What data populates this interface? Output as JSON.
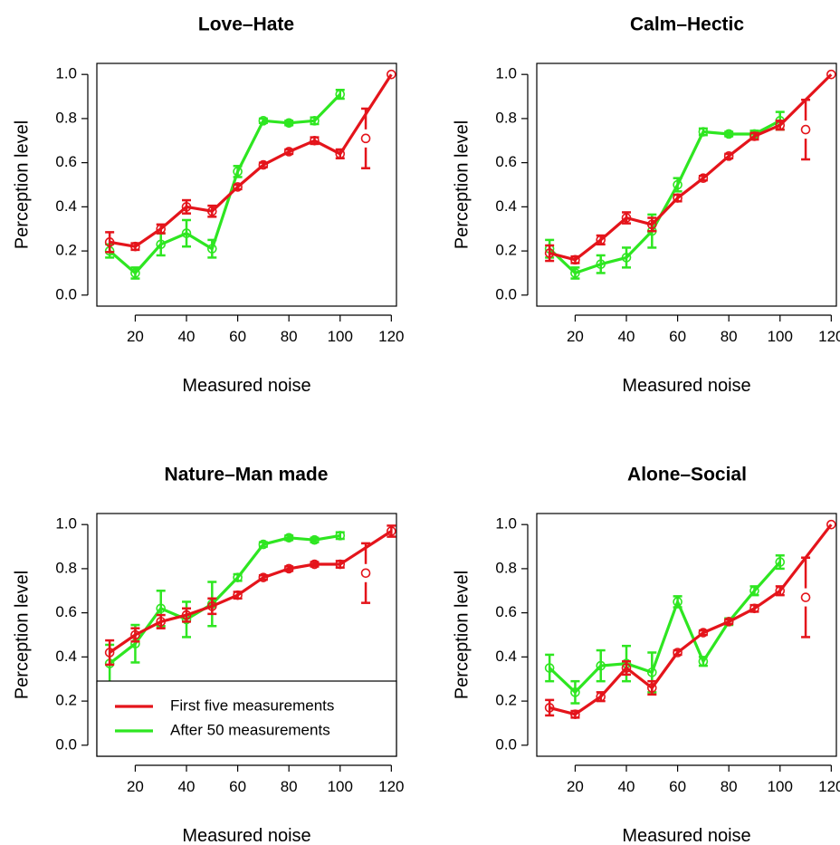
{
  "legend": {
    "entries": [
      {
        "label": "First five measurements",
        "color": "#e4141b"
      },
      {
        "label": "After 50 measurements",
        "color": "#2ee621"
      }
    ],
    "placement": "bottom-left of Nature-Man made panel"
  },
  "chart_data": [
    {
      "type": "line",
      "title": "Love–Hate",
      "xlabel": "Measured noise",
      "ylabel": "Perception level",
      "xlim": [
        5,
        122
      ],
      "ylim": [
        -0.05,
        1.05
      ],
      "xticks": [
        "20",
        "40",
        "60",
        "80",
        "100",
        "120"
      ],
      "yticks": [
        "0.0",
        "0.2",
        "0.4",
        "0.6",
        "0.8",
        "1.0"
      ],
      "grid": false,
      "series": [
        {
          "name": "First five measurements",
          "color": "#e4141b",
          "x": [
            10,
            20,
            30,
            40,
            50,
            60,
            70,
            80,
            90,
            100,
            110,
            120
          ],
          "y": [
            0.24,
            0.22,
            0.3,
            0.4,
            0.38,
            0.49,
            0.59,
            0.65,
            0.7,
            0.64,
            0.71,
            1.0
          ],
          "err": [
            0.045,
            0.015,
            0.02,
            0.03,
            0.025,
            0.01,
            0.01,
            0.01,
            0.015,
            0.02,
            0.135,
            0
          ]
        },
        {
          "name": "After 50 measurements",
          "color": "#2ee621",
          "x": [
            10,
            20,
            30,
            40,
            50,
            60,
            70,
            80,
            90,
            100
          ],
          "y": [
            0.2,
            0.1,
            0.23,
            0.28,
            0.21,
            0.56,
            0.79,
            0.78,
            0.79,
            0.91
          ],
          "err": [
            0.03,
            0.025,
            0.05,
            0.06,
            0.04,
            0.025,
            0.01,
            0.01,
            0.015,
            0.02
          ]
        }
      ]
    },
    {
      "type": "line",
      "title": "Calm–Hectic",
      "xlabel": "Measured noise",
      "ylabel": "Perception level",
      "xlim": [
        5,
        122
      ],
      "ylim": [
        -0.05,
        1.05
      ],
      "xticks": [
        "20",
        "40",
        "60",
        "80",
        "100",
        "120"
      ],
      "yticks": [
        "0.0",
        "0.2",
        "0.4",
        "0.6",
        "0.8",
        "1.0"
      ],
      "grid": false,
      "series": [
        {
          "name": "First five measurements",
          "color": "#e4141b",
          "x": [
            10,
            20,
            30,
            40,
            50,
            60,
            70,
            80,
            90,
            100,
            110,
            120
          ],
          "y": [
            0.19,
            0.16,
            0.25,
            0.35,
            0.32,
            0.44,
            0.53,
            0.63,
            0.72,
            0.77,
            0.75,
            1.0
          ],
          "err": [
            0.035,
            0.015,
            0.02,
            0.025,
            0.03,
            0.015,
            0.01,
            0.01,
            0.015,
            0.02,
            0.135,
            0
          ]
        },
        {
          "name": "After 50 measurements",
          "color": "#2ee621",
          "x": [
            10,
            20,
            30,
            40,
            50,
            60,
            70,
            80,
            90,
            100
          ],
          "y": [
            0.21,
            0.1,
            0.14,
            0.17,
            0.29,
            0.5,
            0.74,
            0.73,
            0.73,
            0.79
          ],
          "err": [
            0.04,
            0.025,
            0.04,
            0.045,
            0.075,
            0.03,
            0.015,
            0.01,
            0.015,
            0.04
          ]
        }
      ]
    },
    {
      "type": "line",
      "title": "Nature–Man made",
      "xlabel": "Measured noise",
      "ylabel": "Perception level",
      "xlim": [
        5,
        122
      ],
      "ylim": [
        -0.05,
        1.05
      ],
      "xticks": [
        "20",
        "40",
        "60",
        "80",
        "100",
        "120"
      ],
      "yticks": [
        "0.0",
        "0.2",
        "0.4",
        "0.6",
        "0.8",
        "1.0"
      ],
      "grid": false,
      "series": [
        {
          "name": "First five measurements",
          "color": "#e4141b",
          "x": [
            10,
            20,
            30,
            40,
            50,
            60,
            70,
            80,
            90,
            100,
            110,
            120
          ],
          "y": [
            0.42,
            0.5,
            0.56,
            0.59,
            0.63,
            0.68,
            0.76,
            0.8,
            0.82,
            0.82,
            0.78,
            0.97
          ],
          "err": [
            0.055,
            0.03,
            0.03,
            0.03,
            0.035,
            0.015,
            0.01,
            0.01,
            0.01,
            0.015,
            0.135,
            0.025
          ]
        },
        {
          "name": "After 50 measurements",
          "color": "#2ee621",
          "x": [
            10,
            20,
            30,
            40,
            50,
            60,
            70,
            80,
            90,
            100
          ],
          "y": [
            0.37,
            0.46,
            0.62,
            0.57,
            0.64,
            0.76,
            0.91,
            0.94,
            0.93,
            0.95
          ],
          "err": [
            0.085,
            0.085,
            0.08,
            0.08,
            0.1,
            0.015,
            0.01,
            0.01,
            0.01,
            0.015
          ]
        }
      ]
    },
    {
      "type": "line",
      "title": "Alone–Social",
      "xlabel": "Measured noise",
      "ylabel": "Perception level",
      "xlim": [
        5,
        122
      ],
      "ylim": [
        -0.05,
        1.05
      ],
      "xticks": [
        "20",
        "40",
        "60",
        "80",
        "100",
        "120"
      ],
      "yticks": [
        "0.0",
        "0.2",
        "0.4",
        "0.6",
        "0.8",
        "1.0"
      ],
      "grid": false,
      "series": [
        {
          "name": "First five measurements",
          "color": "#e4141b",
          "x": [
            10,
            20,
            30,
            40,
            50,
            60,
            70,
            80,
            90,
            100,
            110,
            120
          ],
          "y": [
            0.17,
            0.14,
            0.22,
            0.35,
            0.26,
            0.42,
            0.51,
            0.56,
            0.62,
            0.7,
            0.67,
            1.0
          ],
          "err": [
            0.035,
            0.015,
            0.02,
            0.03,
            0.03,
            0.01,
            0.01,
            0.01,
            0.015,
            0.02,
            0.18,
            0
          ]
        },
        {
          "name": "After 50 measurements",
          "color": "#2ee621",
          "x": [
            10,
            20,
            30,
            40,
            50,
            60,
            70,
            80,
            90,
            100
          ],
          "y": [
            0.35,
            0.24,
            0.36,
            0.37,
            0.33,
            0.65,
            0.38,
            0.56,
            0.7,
            0.83
          ],
          "err": [
            0.06,
            0.05,
            0.07,
            0.08,
            0.09,
            0.025,
            0.02,
            0.015,
            0.02,
            0.03
          ]
        }
      ]
    }
  ]
}
